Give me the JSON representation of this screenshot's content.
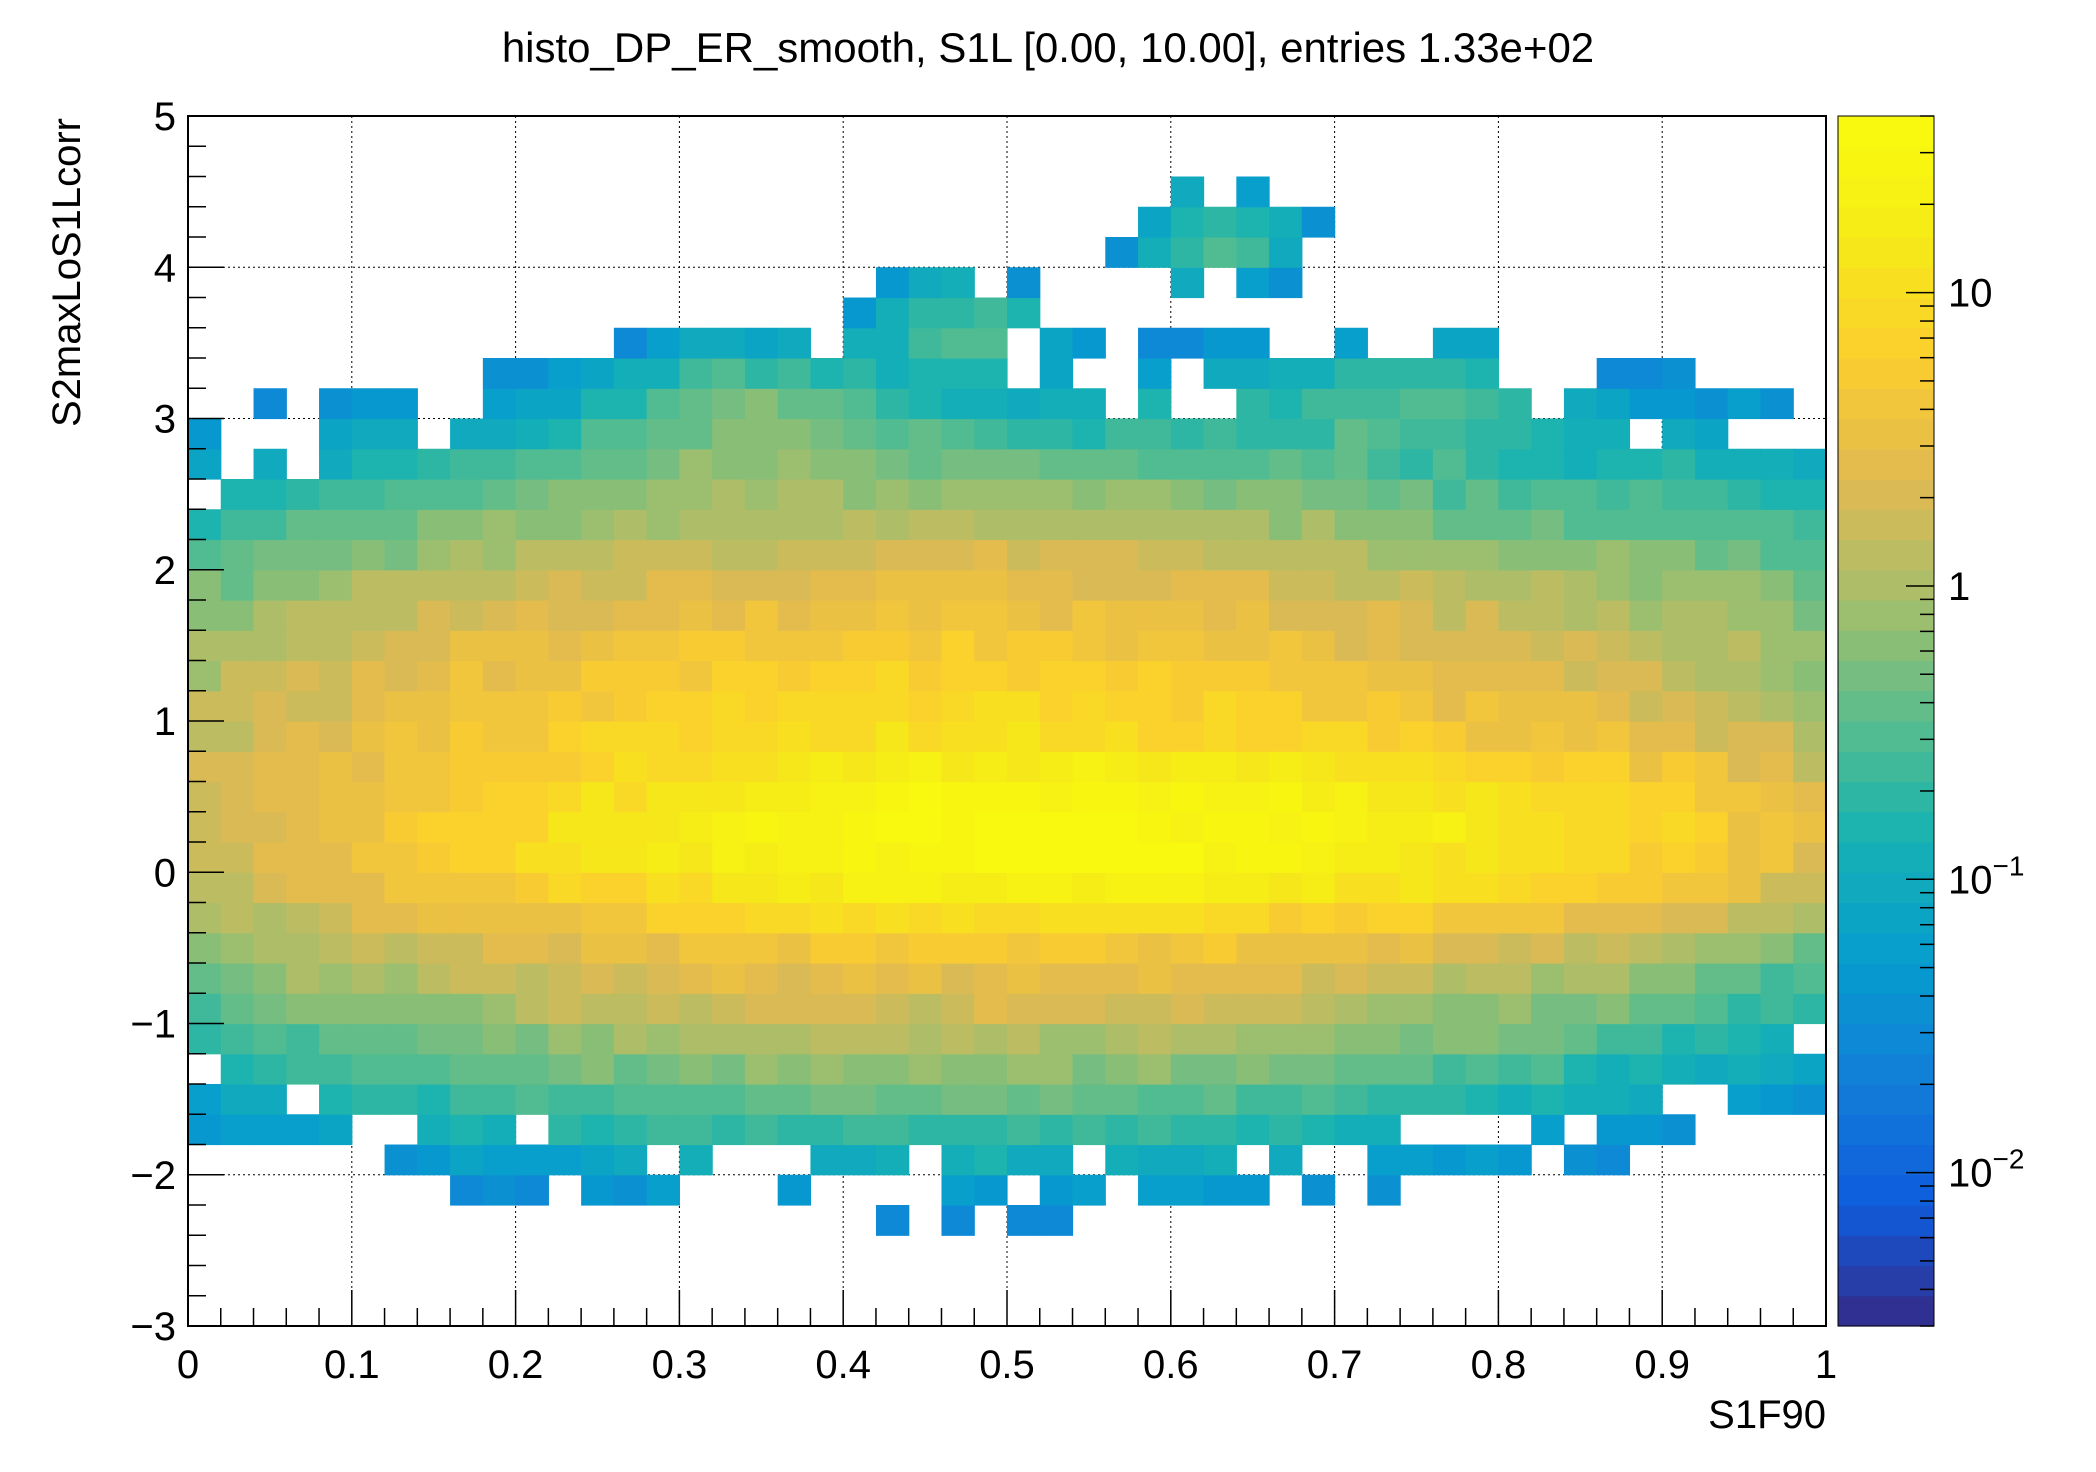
{
  "chart_data": {
    "type": "heatmap",
    "title": "histo_DP_ER_smooth, S1L [0.00, 10.00], entries 1.33e+02",
    "xlabel": "S1F90",
    "ylabel": "S2maxLoS1Lcorr",
    "xlim": [
      0,
      1
    ],
    "ylim": [
      -3,
      5
    ],
    "x_ticks": [
      "0",
      "0.1",
      "0.2",
      "0.3",
      "0.4",
      "0.5",
      "0.6",
      "0.7",
      "0.8",
      "0.9",
      "1"
    ],
    "y_ticks": [
      "−3",
      "−2",
      "−1",
      "0",
      "1",
      "2",
      "3",
      "4",
      "5"
    ],
    "z_scale": "log",
    "zlim": [
      0.003,
      40
    ],
    "z_ticks": [
      {
        "value": 10,
        "base": "10",
        "exp": ""
      },
      {
        "value": 1,
        "base": "1",
        "exp": ""
      },
      {
        "value": 0.1,
        "base": "10",
        "exp": "−1"
      },
      {
        "value": 0.01,
        "base": "10",
        "exp": "−2"
      }
    ],
    "grid": true,
    "palette": "kBird",
    "x_bin_width": 0.02,
    "y_bin_width": 0.2,
    "region": "counts concentrated along y≈0.2 for x 0.38–0.70 (~25–35), falling to ~10 across 0.2<x<0.85, −1<y<2; sparse low-count tails to x=1 and islands near (0.48,3.6) and (0.63,4.2)"
  }
}
